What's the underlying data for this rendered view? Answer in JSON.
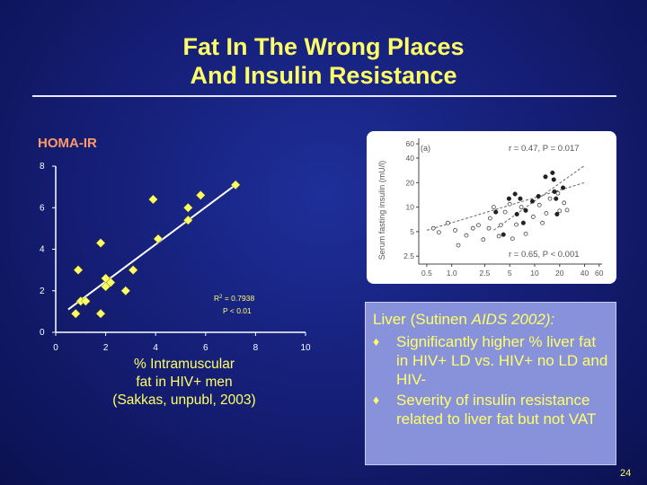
{
  "slide": {
    "title_line1": "Fat In The Wrong Places",
    "title_line2": "And Insulin Resistance",
    "page_number": "24"
  },
  "chart_data": [
    {
      "type": "scatter",
      "ylabel": "HOMA-IR",
      "xlabel": "% Intramuscular fat in HIV+ men",
      "caption_lines": [
        "% Intramuscular",
        "fat in HIV+ men",
        "(Sakkas, unpubl, 2003)"
      ],
      "xlim": [
        0,
        10
      ],
      "ylim": [
        0,
        8
      ],
      "x_ticks": [
        "0",
        "2",
        "4",
        "6",
        "8",
        "10"
      ],
      "y_ticks": [
        "0",
        "2",
        "4",
        "6",
        "8"
      ],
      "points": [
        {
          "x": 0.8,
          "y": 0.9
        },
        {
          "x": 1.0,
          "y": 1.5
        },
        {
          "x": 1.2,
          "y": 1.5
        },
        {
          "x": 0.9,
          "y": 3.0
        },
        {
          "x": 1.8,
          "y": 0.9
        },
        {
          "x": 1.8,
          "y": 4.3
        },
        {
          "x": 2.0,
          "y": 2.6
        },
        {
          "x": 2.0,
          "y": 2.2
        },
        {
          "x": 2.2,
          "y": 2.4
        },
        {
          "x": 2.8,
          "y": 2.0
        },
        {
          "x": 3.1,
          "y": 3.0
        },
        {
          "x": 3.9,
          "y": 6.4
        },
        {
          "x": 4.1,
          "y": 4.5
        },
        {
          "x": 5.3,
          "y": 5.4
        },
        {
          "x": 5.3,
          "y": 6.0
        },
        {
          "x": 5.8,
          "y": 6.6
        },
        {
          "x": 7.2,
          "y": 7.1
        }
      ],
      "trendline": {
        "x": [
          0.5,
          7.2
        ],
        "y": [
          1.1,
          7.1
        ]
      },
      "annotation": {
        "r2_label": "R",
        "r2_value": " = 0.7938",
        "p": "P < 0.01"
      },
      "marker_color": "#ffff66"
    },
    {
      "type": "scatter",
      "panel_label": "(a)",
      "ylabel": "Serum fasting insulin (mU/l)",
      "x_ticks": [
        "0.5",
        "1.0",
        "2.5",
        "5",
        "10",
        "20",
        "40",
        "60"
      ],
      "y_ticks": [
        "60",
        "40",
        "20",
        "10",
        "5",
        "2.5"
      ],
      "annotation_top": "r = 0.47, P = 0.017",
      "annotation_bottom": "r = 0.65, P < 0.001",
      "axis_scale": "log",
      "filled_points": [
        {
          "x": 3.4,
          "y": 8.7
        },
        {
          "x": 4.2,
          "y": 4.6
        },
        {
          "x": 4.9,
          "y": 12.7
        },
        {
          "x": 5.8,
          "y": 14.5
        },
        {
          "x": 6.1,
          "y": 8.2
        },
        {
          "x": 6.7,
          "y": 12.7
        },
        {
          "x": 7.3,
          "y": 6.4
        },
        {
          "x": 7.8,
          "y": 9.1
        },
        {
          "x": 9.4,
          "y": 11.8
        },
        {
          "x": 11.1,
          "y": 13.6
        },
        {
          "x": 13.5,
          "y": 23.6
        },
        {
          "x": 16.4,
          "y": 26.4
        },
        {
          "x": 17.0,
          "y": 21.8
        },
        {
          "x": 17.3,
          "y": 15.5
        },
        {
          "x": 18.1,
          "y": 12.7
        },
        {
          "x": 18.6,
          "y": 8.2
        },
        {
          "x": 22.0,
          "y": 17.3
        }
      ],
      "open_points": [
        {
          "x": 0.6,
          "y": 5.5
        },
        {
          "x": 0.7,
          "y": 4.9
        },
        {
          "x": 0.9,
          "y": 6.4
        },
        {
          "x": 1.1,
          "y": 5.2
        },
        {
          "x": 1.2,
          "y": 3.4
        },
        {
          "x": 1.5,
          "y": 4.5
        },
        {
          "x": 1.8,
          "y": 5.5
        },
        {
          "x": 2.1,
          "y": 6.0
        },
        {
          "x": 2.4,
          "y": 4.0
        },
        {
          "x": 2.8,
          "y": 5.5
        },
        {
          "x": 2.9,
          "y": 7.3
        },
        {
          "x": 3.2,
          "y": 10.0
        },
        {
          "x": 3.7,
          "y": 4.4
        },
        {
          "x": 3.9,
          "y": 6.0
        },
        {
          "x": 4.4,
          "y": 8.7
        },
        {
          "x": 5.0,
          "y": 10.9
        },
        {
          "x": 5.4,
          "y": 4.1
        },
        {
          "x": 6.0,
          "y": 6.1
        },
        {
          "x": 6.9,
          "y": 10.0
        },
        {
          "x": 7.8,
          "y": 4.7
        },
        {
          "x": 9.6,
          "y": 7.6
        },
        {
          "x": 11.4,
          "y": 10.6
        },
        {
          "x": 12.4,
          "y": 6.4
        },
        {
          "x": 13.8,
          "y": 8.4
        },
        {
          "x": 15.3,
          "y": 12.7
        },
        {
          "x": 19.1,
          "y": 14.8
        },
        {
          "x": 20.0,
          "y": 9.0
        },
        {
          "x": 22.6,
          "y": 11.3
        },
        {
          "x": 24.6,
          "y": 9.2
        }
      ],
      "trendlines": [
        {
          "x": [
            0.5,
            40
          ],
          "y": [
            5.2,
            20.0
          ]
        },
        {
          "x": [
            3.2,
            40
          ],
          "y": [
            5.2,
            32.4
          ]
        }
      ]
    }
  ],
  "liver_box": {
    "title_plain": "Liver (Sutinen ",
    "title_italic": "AIDS 2002):",
    "bullet_glyph": "♦",
    "items": [
      "Significantly higher % liver fat in HIV+ LD vs. HIV+ no LD and HIV-",
      "Severity of insulin resistance related to liver fat but not VAT"
    ]
  }
}
